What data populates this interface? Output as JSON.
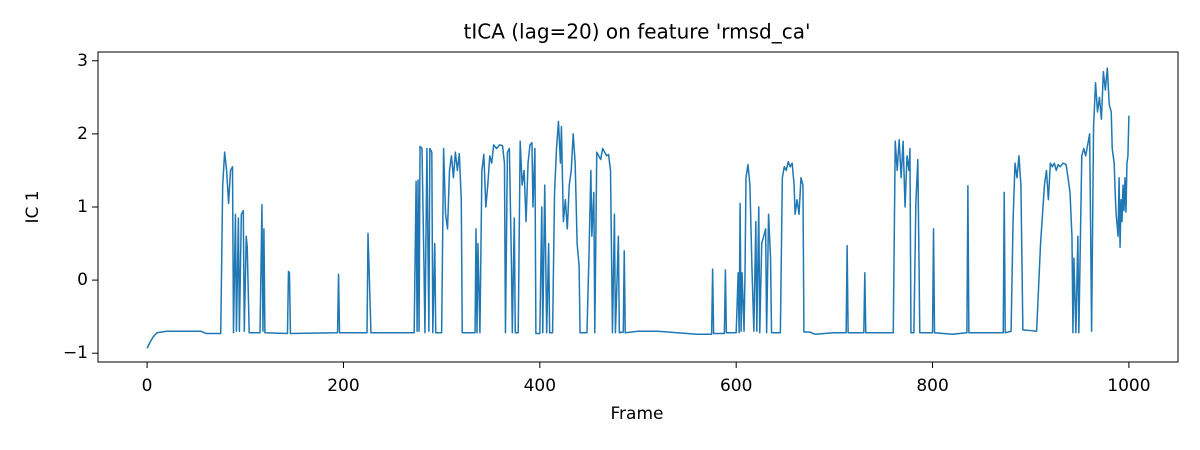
{
  "chart_data": {
    "type": "line",
    "title": "tICA (lag=20) on feature 'rmsd_ca'",
    "xlabel": "Frame",
    "ylabel": "IC 1",
    "color": "#1f77b4",
    "xlim": [
      -50,
      1050
    ],
    "ylim": [
      -1.12,
      3.12
    ],
    "xticks": [
      0,
      200,
      400,
      600,
      800,
      1000
    ],
    "yticks": [
      {
        "value": -1,
        "label": "−1"
      },
      0,
      1,
      2,
      3
    ],
    "x": [
      0,
      3,
      6,
      10,
      20,
      40,
      55,
      60,
      75,
      77,
      79,
      81,
      83,
      85,
      87,
      88,
      90,
      91,
      93,
      94,
      96,
      98,
      99,
      101,
      102,
      104,
      115,
      117,
      118,
      119,
      120,
      143,
      144,
      145,
      146,
      194,
      195,
      196,
      224,
      225,
      226,
      228,
      272,
      274,
      275,
      276,
      277,
      278,
      280,
      282,
      283,
      285,
      287,
      288,
      290,
      291,
      293,
      294,
      300,
      302,
      304,
      306,
      308,
      310,
      312,
      314,
      316,
      318,
      320,
      321,
      334,
      335,
      336,
      337,
      339,
      341,
      343,
      345,
      347,
      349,
      351,
      353,
      356,
      359,
      362,
      364,
      365,
      367,
      369,
      371,
      372,
      374,
      375,
      378,
      380,
      382,
      384,
      386,
      388,
      390,
      392,
      393,
      395,
      396,
      400,
      402,
      403,
      405,
      407,
      409,
      410,
      413,
      415,
      417,
      419,
      421,
      422,
      424,
      426,
      428,
      430,
      432,
      434,
      436,
      438,
      440,
      441,
      448,
      450,
      452,
      453,
      455,
      456,
      458,
      460,
      462,
      464,
      466,
      468,
      470,
      472,
      474,
      476,
      477,
      480,
      481,
      485,
      486,
      487,
      500,
      520,
      540,
      560,
      575,
      576,
      577,
      588,
      589,
      590,
      600,
      602,
      603,
      604,
      605,
      606,
      608,
      609,
      610,
      612,
      614,
      616,
      618,
      620,
      621,
      623,
      624,
      626,
      628,
      630,
      631,
      633,
      635,
      636,
      645,
      647,
      649,
      651,
      653,
      655,
      657,
      659,
      660,
      662,
      664,
      666,
      668,
      669,
      675,
      680,
      700,
      712,
      713,
      714,
      730,
      731,
      732,
      760,
      762,
      764,
      766,
      768,
      770,
      772,
      774,
      776,
      777,
      778,
      781,
      783,
      785,
      786,
      787,
      800,
      801,
      802,
      820,
      835,
      836,
      837,
      872,
      873,
      874,
      880,
      882,
      884,
      886,
      888,
      890,
      892,
      900,
      906,
      910,
      914,
      916,
      918,
      920,
      922,
      924,
      926,
      928,
      930,
      933,
      936,
      938,
      940,
      942,
      943,
      944,
      946,
      948,
      949,
      952,
      954,
      956,
      958,
      960,
      961,
      962,
      964,
      966,
      968,
      970,
      972,
      974,
      976,
      978,
      980,
      982,
      983,
      985,
      986,
      987,
      989,
      990,
      991,
      992,
      993,
      994,
      995,
      996,
      997,
      998,
      999,
      1000
    ],
    "values": [
      -0.93,
      -0.85,
      -0.78,
      -0.72,
      -0.7,
      -0.7,
      -0.7,
      -0.73,
      -0.73,
      1.3,
      1.75,
      1.5,
      1.05,
      1.5,
      1.55,
      -0.72,
      0.9,
      -0.7,
      0.85,
      -0.7,
      0.9,
      0.95,
      -0.7,
      0.6,
      0.45,
      -0.72,
      -0.72,
      1.03,
      -0.7,
      0.7,
      -0.72,
      -0.73,
      0.12,
      0.1,
      -0.73,
      -0.72,
      0.08,
      -0.72,
      -0.72,
      0.64,
      0.2,
      -0.72,
      -0.72,
      1.35,
      -0.7,
      1.37,
      -0.7,
      1.83,
      1.8,
      0.2,
      -0.72,
      1.8,
      -0.7,
      1.8,
      1.75,
      -0.72,
      0.5,
      -0.72,
      -0.72,
      1.8,
      0.9,
      0.7,
      1.5,
      1.7,
      1.4,
      1.75,
      1.5,
      1.73,
      1.1,
      -0.72,
      -0.72,
      0.7,
      -0.72,
      0.5,
      -0.72,
      1.5,
      1.72,
      1.0,
      1.3,
      1.7,
      1.6,
      1.85,
      1.8,
      1.85,
      1.84,
      1.6,
      -0.72,
      1.75,
      1.8,
      0.3,
      -0.72,
      0.85,
      -0.72,
      -0.72,
      1.9,
      1.3,
      1.5,
      0.8,
      1.6,
      1.85,
      1.88,
      1.0,
      1.8,
      -0.73,
      -0.73,
      1.0,
      -0.72,
      1.3,
      -0.72,
      0.5,
      -0.72,
      -0.72,
      1.2,
      1.8,
      2.17,
      1.6,
      2.1,
      0.8,
      1.1,
      0.7,
      1.3,
      1.5,
      2.0,
      1.6,
      0.5,
      0.2,
      -0.72,
      -0.72,
      0.3,
      1.5,
      0.6,
      1.2,
      -0.72,
      1.75,
      1.7,
      1.65,
      1.8,
      1.75,
      1.7,
      1.72,
      1.5,
      -0.72,
      0.9,
      -0.72,
      0.6,
      -0.72,
      -0.71,
      0.4,
      -0.72,
      -0.7,
      -0.7,
      -0.72,
      -0.74,
      -0.74,
      0.15,
      -0.73,
      -0.73,
      0.14,
      -0.72,
      -0.72,
      0.1,
      -0.72,
      1.05,
      -0.7,
      0.1,
      -0.7,
      0.1,
      1.4,
      1.58,
      1.3,
      0.2,
      -0.7,
      0.8,
      -0.7,
      1.0,
      -0.72,
      0.5,
      0.6,
      0.7,
      -0.72,
      0.9,
      0.3,
      -0.72,
      -0.72,
      1.4,
      1.55,
      1.5,
      1.62,
      1.55,
      1.6,
      1.3,
      0.9,
      1.1,
      0.9,
      1.4,
      1.3,
      -0.71,
      -0.71,
      -0.74,
      -0.72,
      -0.72,
      0.47,
      -0.72,
      -0.72,
      0.1,
      -0.72,
      -0.72,
      1.9,
      1.5,
      1.92,
      1.4,
      1.9,
      1.0,
      1.7,
      1.5,
      1.8,
      -0.72,
      -0.72,
      1.05,
      1.65,
      0.5,
      -0.72,
      -0.72,
      0.7,
      -0.72,
      -0.74,
      -0.72,
      1.29,
      -0.72,
      -0.72,
      1.2,
      -0.72,
      -0.7,
      0.8,
      1.6,
      1.4,
      1.7,
      1.3,
      -0.68,
      -0.69,
      -0.7,
      0.5,
      1.3,
      1.5,
      1.1,
      1.6,
      1.55,
      1.6,
      1.5,
      1.58,
      1.55,
      1.6,
      1.58,
      1.4,
      1.2,
      0.6,
      -0.72,
      0.3,
      -0.72,
      0.6,
      -0.72,
      1.7,
      1.8,
      1.7,
      1.85,
      2.0,
      0.7,
      -0.7,
      2.1,
      2.7,
      2.3,
      2.5,
      2.2,
      2.85,
      2.6,
      2.9,
      2.4,
      2.3,
      1.8,
      1.6,
      1.2,
      0.9,
      0.6,
      1.4,
      0.45,
      1.1,
      0.8,
      1.3,
      0.95,
      1.4,
      0.93,
      1.6,
      1.7,
      2.25
    ]
  }
}
